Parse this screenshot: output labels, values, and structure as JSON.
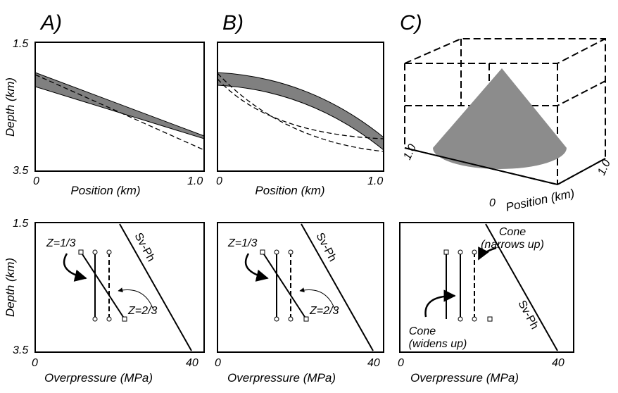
{
  "panels": [
    {
      "label": "A)",
      "top": {
        "y_top": "1.5",
        "y_bottom": "3.5",
        "y_title": "Depth (km)",
        "x_left": "0",
        "x_right": "1.0",
        "x_title": "Position (km)"
      },
      "bottom": {
        "y_top": "1.5",
        "y_bottom": "3.5",
        "y_title": "Depth (km)",
        "x_left": "0",
        "x_right": "40",
        "x_title": "Overpressure (MPa)",
        "annotations": [
          "Z=1/3",
          "Z=2/3",
          "Sv-Ph"
        ]
      }
    },
    {
      "label": "B)",
      "top": {
        "x_left": "0",
        "x_right": "1.0",
        "x_title": "Position (km)"
      },
      "bottom": {
        "x_left": "0",
        "x_right": "40",
        "x_title": "Overpressure (MPa)",
        "annotations": [
          "Z=1/3",
          "Z=2/3",
          "Sv-Ph"
        ]
      }
    },
    {
      "label": "C)",
      "top": {
        "axis_left": "1.0",
        "axis_right": "1.0",
        "axis_title": "Position (km)",
        "origin": "0"
      },
      "bottom": {
        "x_left": "0",
        "x_right": "40",
        "x_title": "Overpressure (MPa)",
        "annotations": [
          "Cone",
          "(narrows up)",
          "Cone",
          "(widens up)",
          "Sv-Ph"
        ]
      }
    }
  ]
}
